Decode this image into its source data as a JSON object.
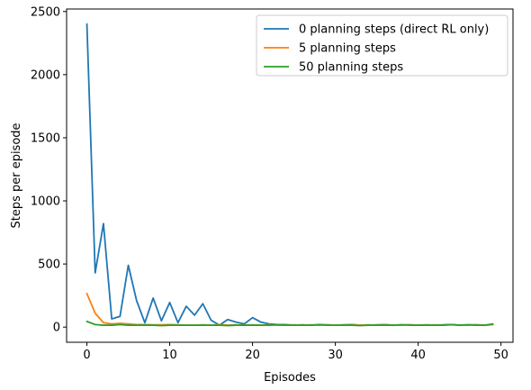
{
  "chart_data": {
    "type": "line",
    "title": "",
    "xlabel": "Episodes",
    "ylabel": "Steps per episode",
    "xlim": [
      -2.45,
      51.45
    ],
    "ylim": [
      -120,
      2520
    ],
    "xticks": [
      0,
      10,
      20,
      30,
      40,
      50
    ],
    "yticks": [
      0,
      500,
      1000,
      1500,
      2000,
      2500
    ],
    "xtick_labels": [
      "0",
      "10",
      "20",
      "30",
      "40",
      "50"
    ],
    "ytick_labels": [
      "0",
      "500",
      "1000",
      "1500",
      "2000",
      "2500"
    ],
    "grid": false,
    "legend_position": "top-right",
    "x": [
      0,
      1,
      2,
      3,
      4,
      5,
      6,
      7,
      8,
      9,
      10,
      11,
      12,
      13,
      14,
      15,
      16,
      17,
      18,
      19,
      20,
      21,
      22,
      23,
      24,
      25,
      26,
      27,
      28,
      29,
      30,
      31,
      32,
      33,
      34,
      35,
      36,
      37,
      38,
      39,
      40,
      41,
      42,
      43,
      44,
      45,
      46,
      47,
      48,
      49
    ],
    "series": [
      {
        "name": "0 planning steps (direct RL only)",
        "color": "#1f77b4",
        "values": [
          2400,
          430,
          820,
          65,
          85,
          490,
          210,
          35,
          230,
          50,
          195,
          35,
          165,
          95,
          185,
          55,
          15,
          60,
          40,
          25,
          75,
          40,
          25,
          20,
          20,
          15,
          18,
          15,
          20,
          18,
          15,
          18,
          20,
          15,
          15,
          18,
          20,
          15,
          18,
          18,
          15,
          18,
          15,
          18,
          20,
          15,
          18,
          18,
          15,
          20
        ]
      },
      {
        "name": "5 planning steps",
        "color": "#ff7f0e",
        "values": [
          265,
          110,
          35,
          25,
          30,
          25,
          20,
          20,
          18,
          18,
          20,
          18,
          15,
          15,
          18,
          15,
          20,
          15,
          18,
          15,
          18,
          15,
          18,
          15,
          15,
          18,
          15,
          18,
          15,
          18,
          15,
          15,
          18,
          15,
          18,
          15,
          18,
          15,
          15,
          18,
          15,
          15,
          18,
          15,
          18,
          15,
          15,
          18,
          15,
          20
        ]
      },
      {
        "name": "50 planning steps",
        "color": "#2ca02c",
        "values": [
          45,
          20,
          15,
          15,
          20,
          15,
          15,
          15,
          15,
          12,
          15,
          15,
          15,
          15,
          15,
          15,
          15,
          12,
          15,
          15,
          15,
          15,
          15,
          18,
          15,
          15,
          15,
          15,
          18,
          15,
          15,
          15,
          15,
          12,
          15,
          15,
          15,
          15,
          18,
          15,
          15,
          15,
          15,
          15,
          20,
          15,
          18,
          15,
          15,
          25
        ]
      }
    ]
  }
}
